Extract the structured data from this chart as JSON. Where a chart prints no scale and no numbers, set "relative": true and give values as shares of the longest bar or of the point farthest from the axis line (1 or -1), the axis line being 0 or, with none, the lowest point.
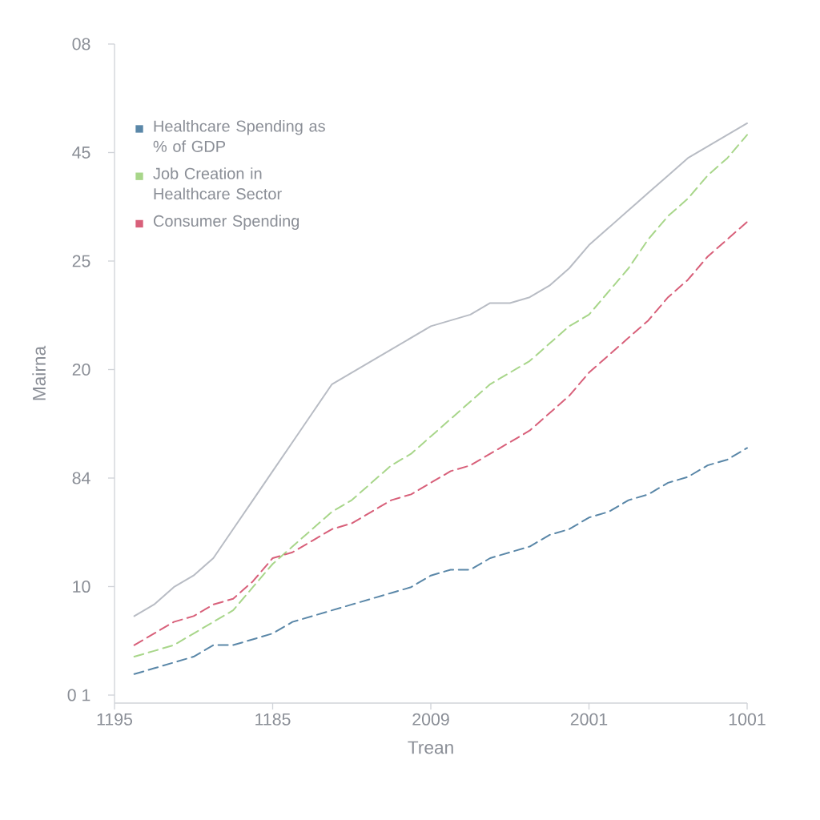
{
  "chart_data": {
    "type": "line",
    "xlabel": "Trean",
    "ylabel": "Mairna",
    "relative": true,
    "categories": [
      "1195",
      null,
      null,
      null,
      null,
      null,
      null,
      null,
      "1185",
      null,
      null,
      null,
      null,
      null,
      null,
      null,
      "2009",
      null,
      null,
      null,
      null,
      null,
      null,
      null,
      "2001",
      null,
      null,
      null,
      null,
      null,
      null,
      null,
      "1001"
    ],
    "annotations": [
      "08",
      "45",
      "25",
      "20",
      "84",
      "10",
      "0 1"
    ],
    "grid": false,
    "legend": "top left",
    "marker": "none",
    "series": [
      {
        "color": "#b8bcc4",
        "line_style": "solid",
        "values": [
          null,
          0.15,
          0.17,
          0.2,
          0.22,
          0.25,
          0.3,
          0.35,
          0.4,
          0.45,
          0.5,
          0.55,
          0.57,
          0.59,
          0.61,
          0.63,
          0.65,
          0.66,
          0.67,
          0.69,
          0.69,
          0.7,
          0.72,
          0.75,
          0.79,
          0.82,
          0.85,
          0.88,
          0.91,
          0.94,
          0.96,
          0.98,
          1
        ]
      },
      {
        "name": "Healthcare Spending as % of GDP",
        "color": "#5a87a8",
        "line_style": "dashed",
        "values": [
          null,
          0.05,
          0.06,
          0.07,
          0.08,
          0.1,
          0.1,
          0.11,
          0.12,
          0.14,
          0.15,
          0.16,
          0.17,
          0.18,
          0.19,
          0.2,
          0.22,
          0.23,
          0.23,
          0.25,
          0.26,
          0.27,
          0.29,
          0.3,
          0.32,
          0.33,
          0.35,
          0.36,
          0.38,
          0.39,
          0.41,
          0.42,
          0.44
        ]
      },
      {
        "name": "Job Creation in Healthcare Sector",
        "color": "#a8d68a",
        "line_style": "dashed",
        "values": [
          null,
          0.08,
          0.09,
          0.1,
          0.12,
          0.14,
          0.16,
          0.2,
          0.24,
          0.27,
          0.3,
          0.33,
          0.35,
          0.38,
          0.41,
          0.43,
          0.46,
          0.49,
          0.52,
          0.55,
          0.57,
          0.59,
          0.62,
          0.65,
          0.67,
          0.71,
          0.75,
          0.8,
          0.84,
          0.87,
          0.91,
          0.94,
          0.98
        ]
      },
      {
        "name": "Consumer Spending",
        "color": "#d8607a",
        "line_style": "dashed",
        "values": [
          null,
          0.1,
          0.12,
          0.14,
          0.15,
          0.17,
          0.18,
          0.21,
          0.25,
          0.26,
          0.28,
          0.3,
          0.31,
          0.33,
          0.35,
          0.36,
          0.38,
          0.4,
          0.41,
          0.43,
          0.45,
          0.47,
          0.5,
          0.53,
          0.57,
          0.6,
          0.63,
          0.66,
          0.7,
          0.73,
          0.77,
          0.8,
          0.83
        ]
      }
    ]
  }
}
